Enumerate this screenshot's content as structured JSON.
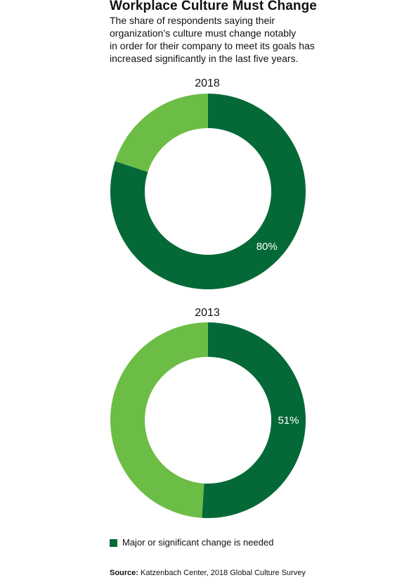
{
  "header": {
    "title": "Workplace Culture Must Change",
    "subtitle_lines": [
      "The share of respondents saying their",
      "organization’s culture must change notably",
      "in order for their company to meet its goals has",
      "increased significantly in the last five years."
    ]
  },
  "colors": {
    "major_change": "#046937",
    "other": "#6cbd45",
    "label": "#ffffff"
  },
  "chart_data": [
    {
      "type": "pie",
      "title": "2018",
      "categories": [
        "Major or significant change is needed",
        ""
      ],
      "values": [
        80,
        20
      ],
      "data_labels": [
        "80%",
        ""
      ]
    },
    {
      "type": "pie",
      "title": "2013",
      "categories": [
        "Major or significant change is needed",
        ""
      ],
      "values": [
        51,
        49
      ],
      "data_labels": [
        "51%",
        ""
      ]
    }
  ],
  "legend": {
    "label": "Major or significant change is needed"
  },
  "source": {
    "prefix": "Source:",
    "text": " Katzenbach Center, 2018 Global Culture Survey"
  }
}
